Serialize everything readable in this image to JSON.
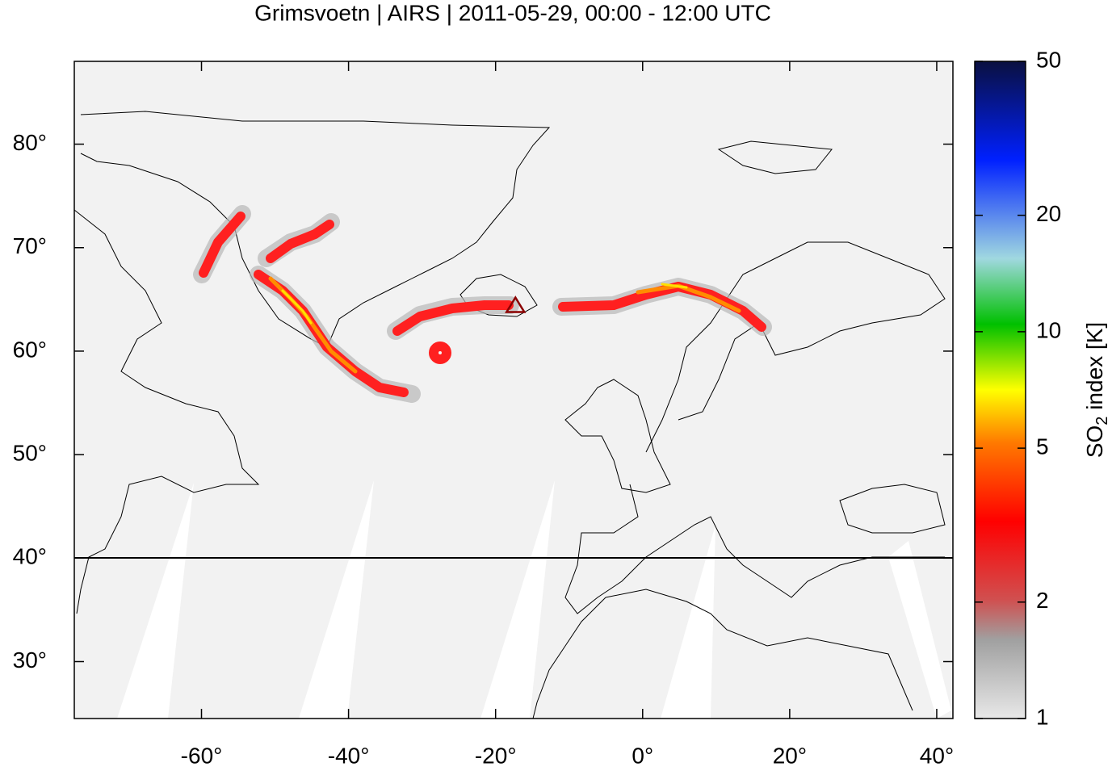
{
  "chart_data": {
    "type": "map",
    "title": "Grimsvoetn | AIRS | 2011-05-29, 00:00 - 12:00 UTC",
    "xlim": [
      -77.3,
      42.2
    ],
    "ylim": [
      24.5,
      88
    ],
    "xticks": [
      {
        "value": -60,
        "label": "-60°"
      },
      {
        "value": -40,
        "label": "-40°"
      },
      {
        "value": -20,
        "label": "-20°"
      },
      {
        "value": 0,
        "label": "0°"
      },
      {
        "value": 20,
        "label": "20°"
      },
      {
        "value": 40,
        "label": "40°"
      }
    ],
    "yticks": [
      {
        "value": 30,
        "label": "30°"
      },
      {
        "value": 40,
        "label": "40°"
      },
      {
        "value": 50,
        "label": "50°"
      },
      {
        "value": 60,
        "label": "60°"
      },
      {
        "value": 70,
        "label": "70°"
      },
      {
        "value": 80,
        "label": "80°"
      }
    ],
    "volcano": {
      "lon": -17.3,
      "lat": 64.4,
      "color": "#8b0000"
    },
    "colorbar": {
      "log_scale": true,
      "lim": [
        1,
        50
      ],
      "ticks": [
        1,
        2,
        5,
        10,
        20,
        50
      ],
      "label_main": "SO",
      "label_sub": "2",
      "label_rest": " index [K]"
    }
  }
}
